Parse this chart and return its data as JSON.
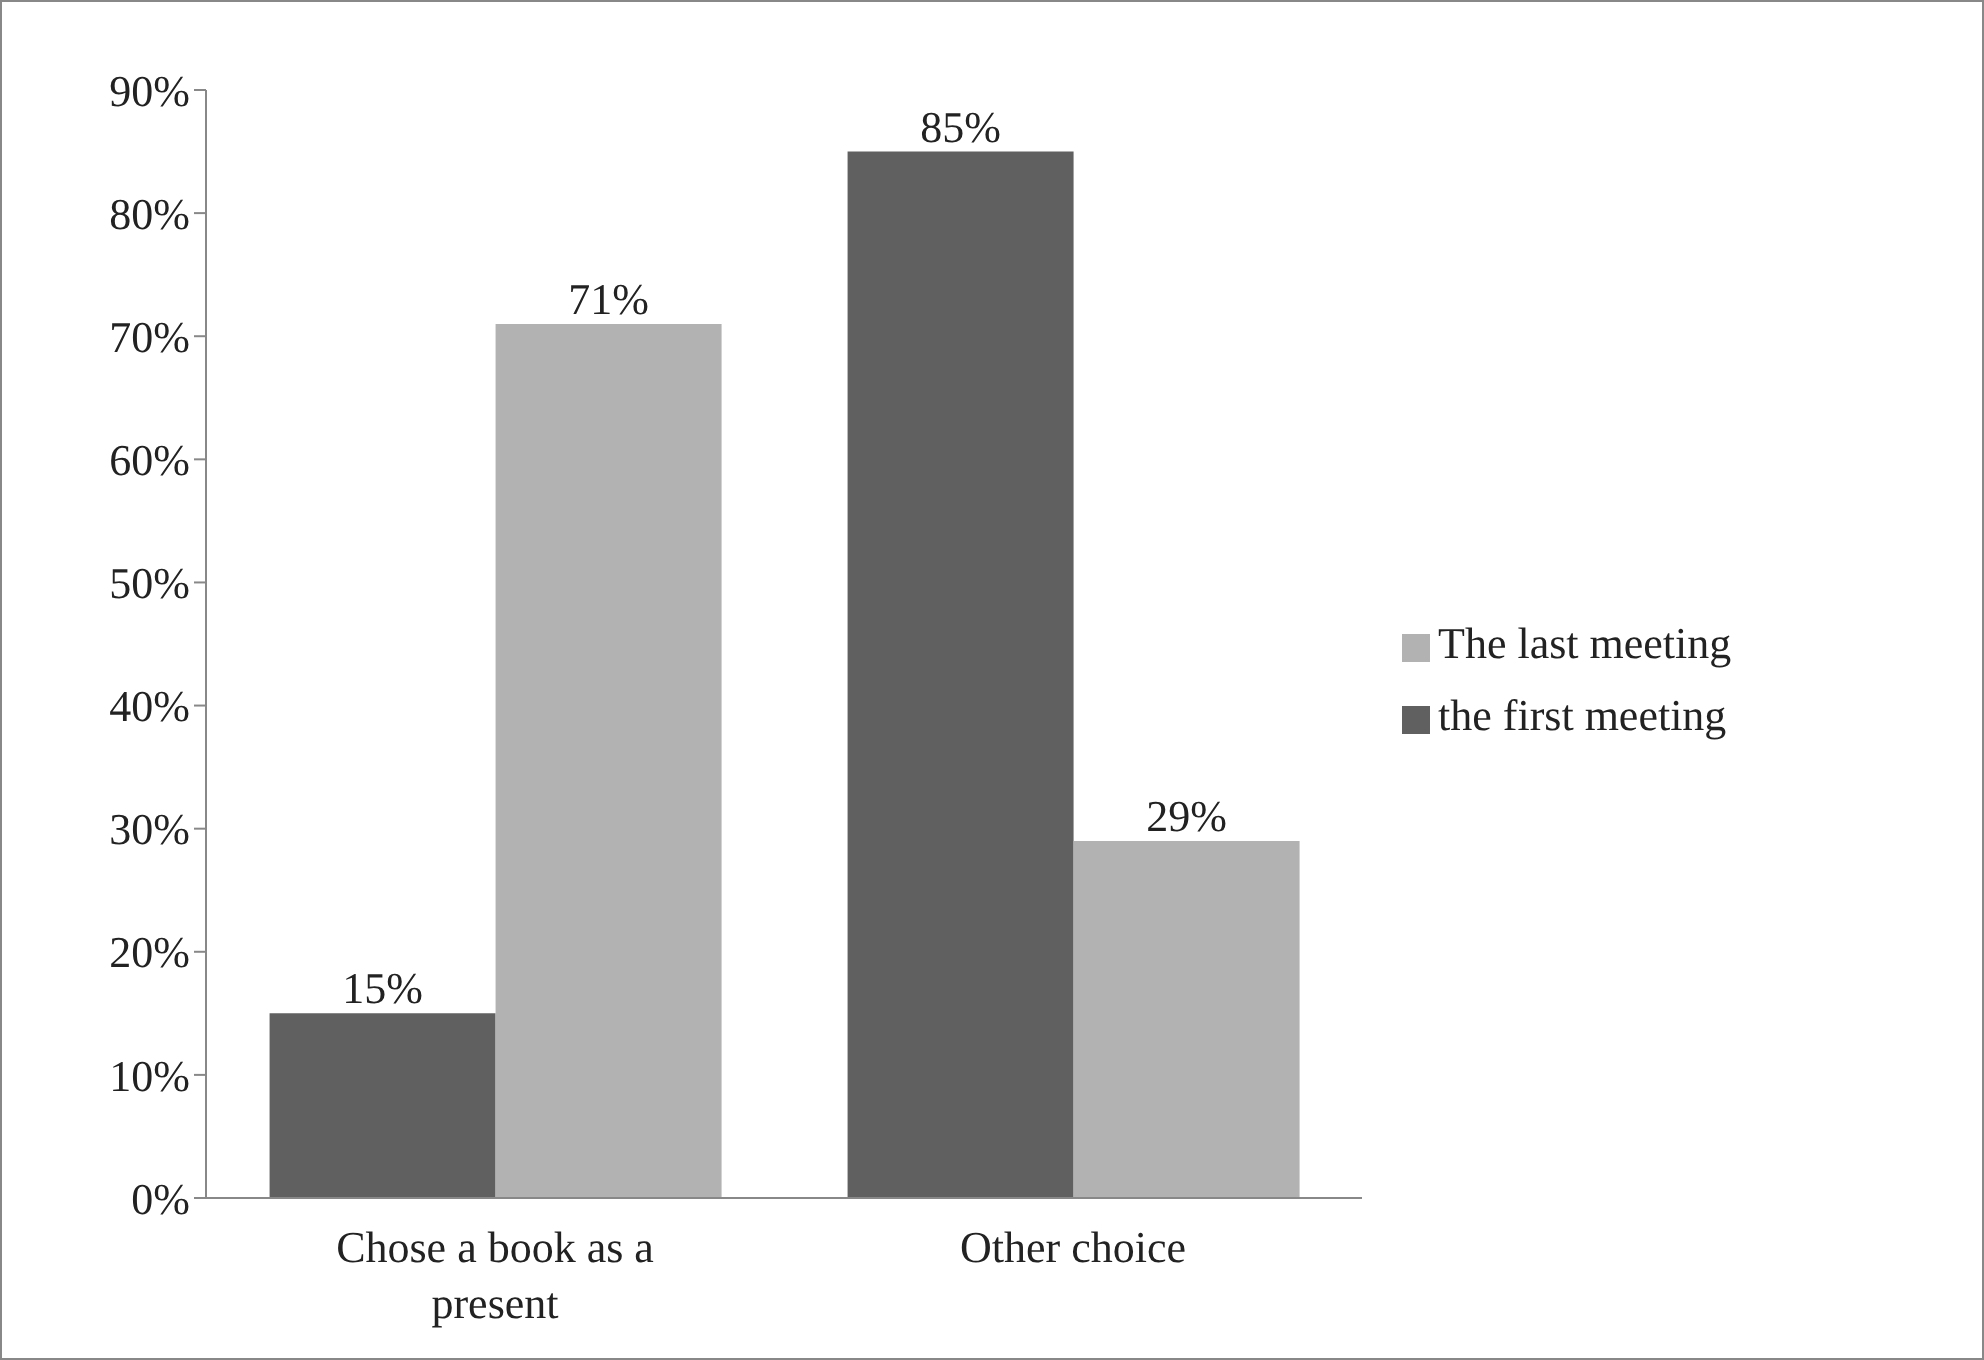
{
  "chart_data": {
    "type": "bar",
    "categories": [
      "Chose a book as a present",
      "Other choice"
    ],
    "series": [
      {
        "name": "the first meeting",
        "color": "#606060",
        "values": [
          15,
          85
        ],
        "value_labels": [
          "15%",
          "85%"
        ]
      },
      {
        "name": "The last meeting",
        "color": "#b2b2b2",
        "values": [
          71,
          29
        ],
        "value_labels": [
          "71%",
          "29%"
        ]
      }
    ],
    "ylim": [
      0,
      90
    ],
    "yticks": [
      {
        "value": 0,
        "label": "0%"
      },
      {
        "value": 10,
        "label": "10%"
      },
      {
        "value": 20,
        "label": "20%"
      },
      {
        "value": 30,
        "label": "30%"
      },
      {
        "value": 40,
        "label": "40%"
      },
      {
        "value": 50,
        "label": "50%"
      },
      {
        "value": 60,
        "label": "60%"
      },
      {
        "value": 70,
        "label": "70%"
      },
      {
        "value": 80,
        "label": "80%"
      },
      {
        "value": 90,
        "label": "90%"
      }
    ],
    "grid": false,
    "legend": "right"
  }
}
